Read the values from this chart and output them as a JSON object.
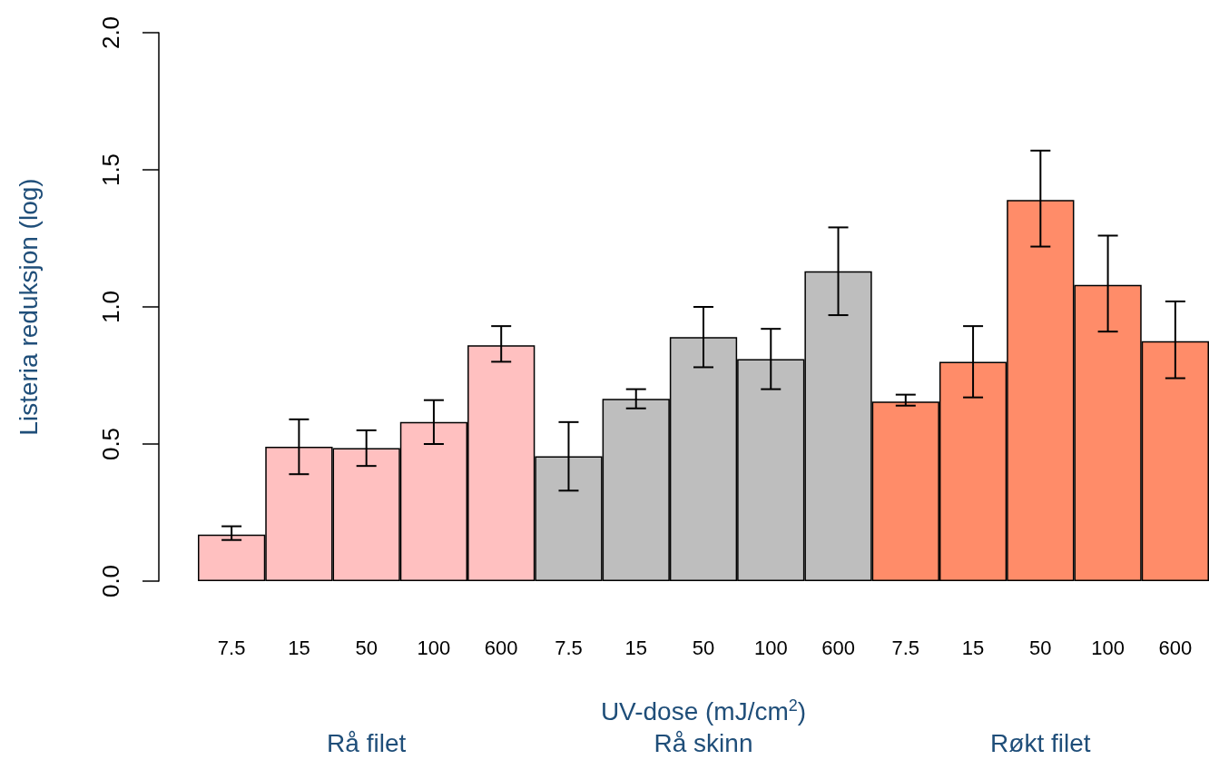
{
  "chart_data": {
    "type": "bar",
    "ylabel": "Listeria reduksjon (log)",
    "xlabel": "UV-dose (mJ/cm$^{2}$)",
    "categories": [
      "7.5",
      "15",
      "50",
      "100",
      "600",
      "7.5",
      "15",
      "50",
      "100",
      "600",
      "7.5",
      "15",
      "50",
      "100",
      "600"
    ],
    "series": [
      {
        "color": "#ffc0c0",
        "values": [
          0.17,
          0.49,
          0.485,
          0.58,
          0.86,
          null,
          null,
          null,
          null,
          null,
          null,
          null,
          null,
          null,
          null
        ],
        "errors": [
          [
            0.15,
            0.2
          ],
          [
            0.39,
            0.59
          ],
          [
            0.42,
            0.55
          ],
          [
            0.5,
            0.66
          ],
          [
            0.8,
            0.93
          ],
          null,
          null,
          null,
          null,
          null,
          null,
          null,
          null,
          null,
          null
        ]
      },
      {
        "color": "#bebebe",
        "values": [
          null,
          null,
          null,
          null,
          null,
          0.455,
          0.665,
          0.89,
          0.81,
          1.13,
          null,
          null,
          null,
          null,
          null
        ],
        "errors": [
          null,
          null,
          null,
          null,
          null,
          [
            0.33,
            0.58
          ],
          [
            0.63,
            0.7
          ],
          [
            0.78,
            1.0
          ],
          [
            0.7,
            0.92
          ],
          [
            0.97,
            1.29
          ],
          null,
          null,
          null,
          null,
          null
        ]
      },
      {
        "color": "#ff8c69",
        "values": [
          null,
          null,
          null,
          null,
          null,
          null,
          null,
          null,
          null,
          null,
          0.655,
          0.8,
          1.39,
          1.08,
          0.875
        ],
        "errors": [
          null,
          null,
          null,
          null,
          null,
          null,
          null,
          null,
          null,
          null,
          [
            0.64,
            0.68
          ],
          [
            0.67,
            0.93
          ],
          [
            1.22,
            1.57
          ],
          [
            0.91,
            1.26
          ],
          [
            0.74,
            1.02
          ]
        ]
      }
    ],
    "ylim": [
      0,
      2
    ],
    "yticks": [
      {
        "value": 0,
        "label": "0.0"
      },
      0.5,
      {
        "value": 1,
        "label": "1.0"
      },
      1.5,
      {
        "value": 2,
        "label": "2.0"
      }
    ],
    "annotations": [
      "Rå filet",
      "Rå skinn",
      "Røkt filet"
    ],
    "grid": false
  }
}
